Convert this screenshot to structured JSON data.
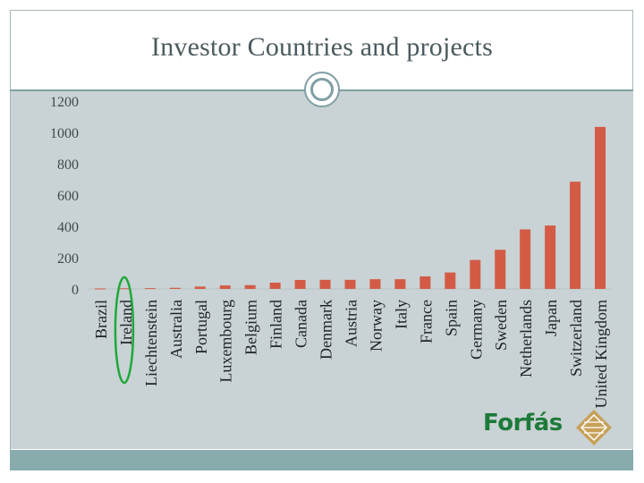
{
  "slide": {
    "title": "Investor Countries and projects"
  },
  "logo": {
    "text": "Forfás",
    "colors": {
      "text": "#1d7a3a",
      "diamond": "#c79a4a"
    }
  },
  "colors": {
    "bar": "#d35b45",
    "plot_background": "#c9d2d4",
    "frame": "#7f9fa3",
    "highlight_ellipse": "#1fa83a"
  },
  "chart_data": {
    "type": "bar",
    "title": "",
    "xlabel": "",
    "ylabel": "",
    "ylim": [
      0,
      1200
    ],
    "yticks": [
      0,
      200,
      400,
      600,
      800,
      1000,
      1200
    ],
    "grid": false,
    "legend": "none",
    "categories": [
      "Brazil",
      "Ireland",
      "Liechtenstein",
      "Australia",
      "Portugal",
      "Luxembourg",
      "Belgium",
      "Finland",
      "Canada",
      "Denmark",
      "Austria",
      "Norway",
      "Italy",
      "France",
      "Spain",
      "Germany",
      "Sweden",
      "Netherlands",
      "Japan",
      "Switzerland",
      "United Kingdom"
    ],
    "values": [
      3,
      4,
      5,
      7,
      15,
      22,
      24,
      40,
      57,
      58,
      58,
      62,
      62,
      80,
      105,
      185,
      250,
      380,
      405,
      685,
      1035
    ],
    "annotations": [
      {
        "type": "ellipse",
        "category": "Ireland",
        "color": "#1fa83a"
      }
    ]
  }
}
